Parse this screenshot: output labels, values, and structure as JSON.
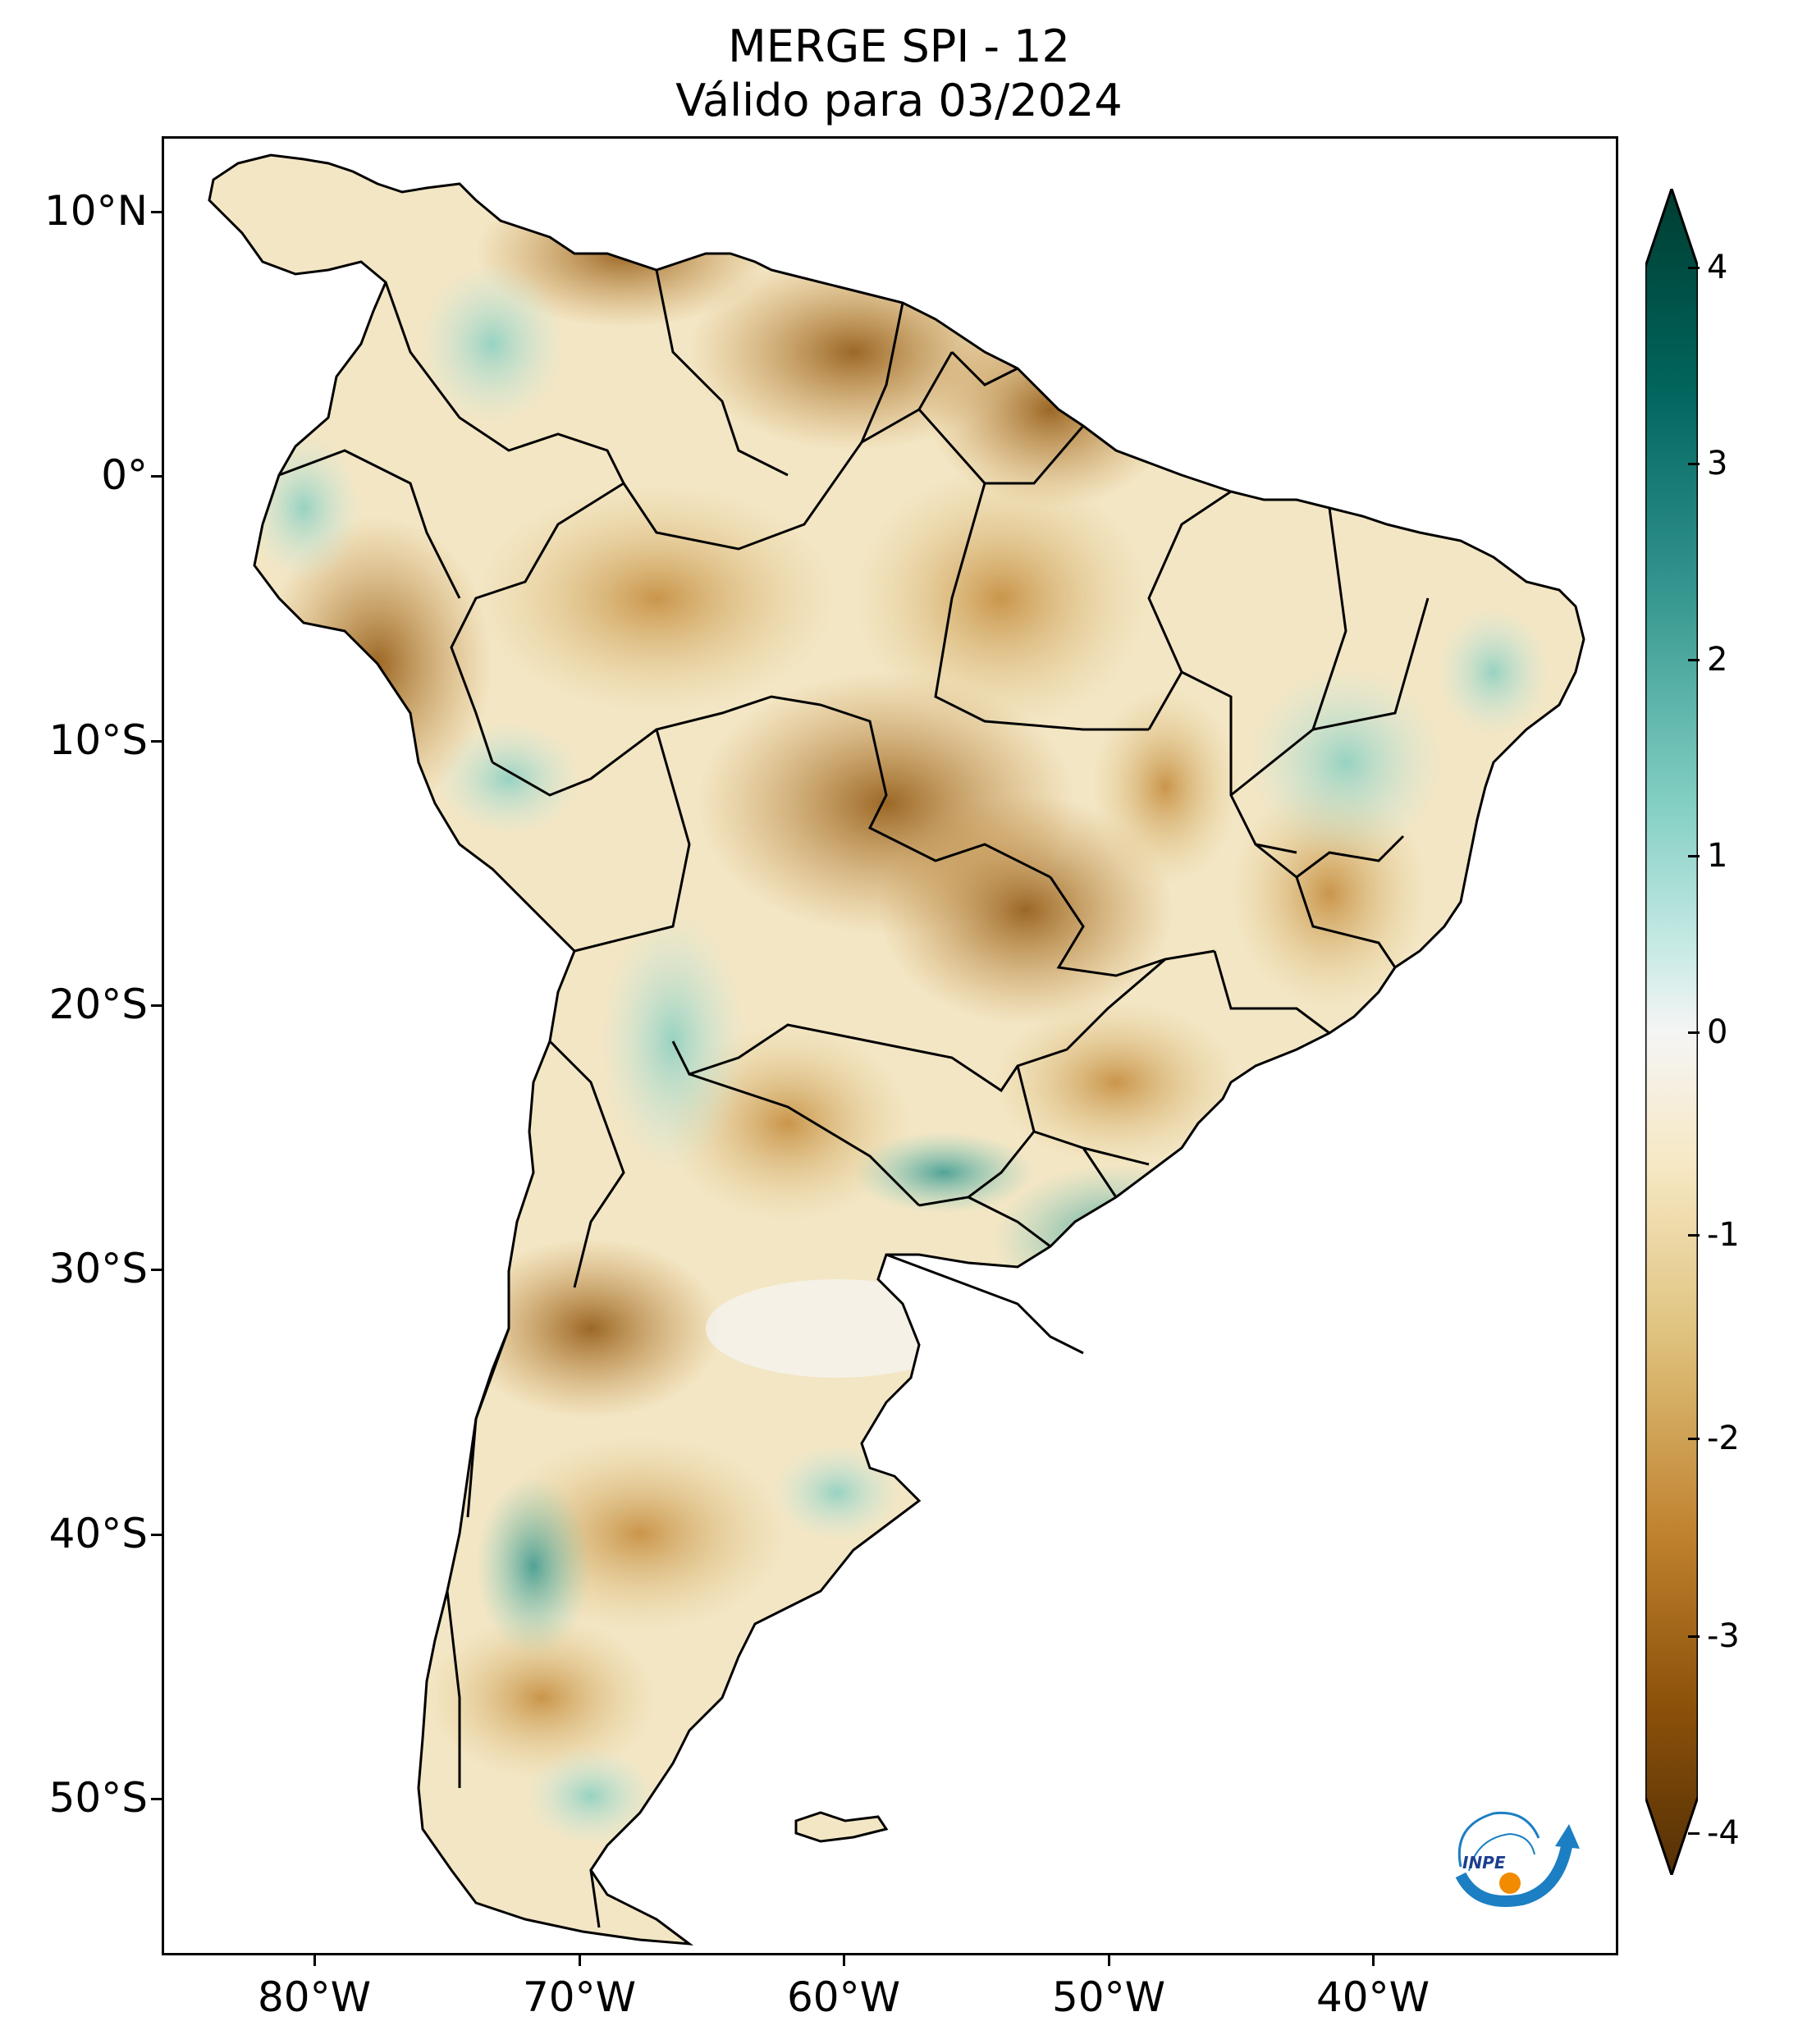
{
  "title": {
    "line1": "MERGE   SPI - 12",
    "line2": "Válido para 03/2024"
  },
  "axes": {
    "lat_labels": [
      "10°N",
      "0°",
      "10°S",
      "20°S",
      "30°S",
      "40°S",
      "50°S"
    ],
    "lon_labels": [
      "80°W",
      "70°W",
      "60°W",
      "50°W",
      "40°W"
    ]
  },
  "colorbar": {
    "tick_labels": [
      "4",
      "3",
      "2",
      "1",
      "0",
      "-1",
      "-2",
      "-3",
      "-4"
    ],
    "colors": {
      "dry_extreme": "#543005",
      "dry": "#8c510a",
      "dry_mid": "#bf812d",
      "dry_light": "#dfc27d",
      "dry_pale": "#f6e8c3",
      "neutral": "#f5f5f5",
      "wet_pale": "#c7eae5",
      "wet_light": "#80cdc1",
      "wet": "#35978f",
      "wet_mid": "#01665e",
      "wet_extreme": "#003c30"
    }
  },
  "logo": {
    "text": "INPE",
    "icon": "inpe-logo-icon"
  },
  "map": {
    "region": "South America",
    "variable": "SPI-12 precipitation anomaly"
  }
}
